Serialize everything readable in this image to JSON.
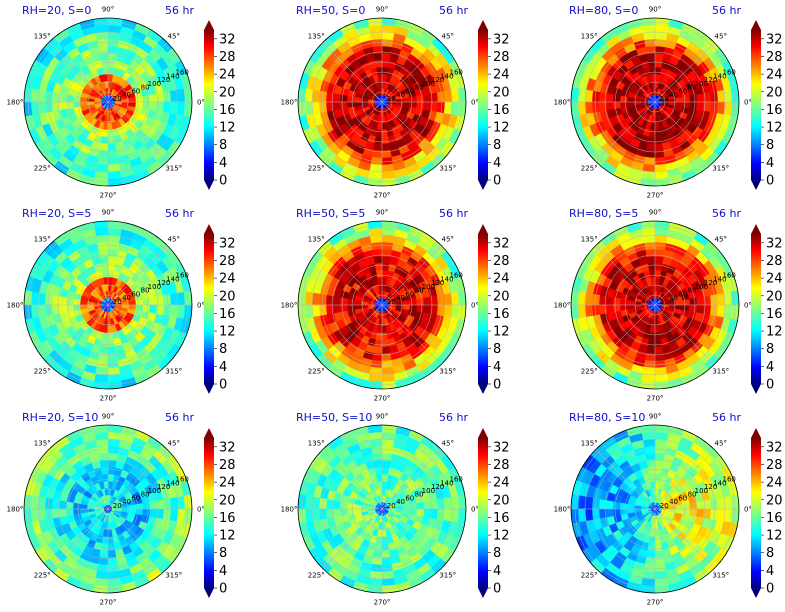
{
  "chart_data": [
    {
      "type": "heatmap",
      "projection": "polar",
      "title_left": "RH=20, S=0",
      "title_right": "56 hr",
      "pattern": "weak_inner",
      "intensity": 0.75,
      "angle_labels": [
        "90°",
        "45°",
        "0°",
        "315°",
        "270°",
        "225°",
        "180°",
        "135°"
      ],
      "radial_ticks": [
        "20",
        "40",
        "60",
        "80",
        "100",
        "120",
        "140",
        "160"
      ],
      "colorbar": {
        "min": 0,
        "max": 34,
        "ticks": [
          "0",
          "4",
          "8",
          "12",
          "16",
          "20",
          "24",
          "28",
          "32"
        ],
        "colormap": "jet",
        "extend": "both"
      }
    },
    {
      "type": "heatmap",
      "projection": "polar",
      "title_left": "RH=50, S=0",
      "title_right": "56 hr",
      "pattern": "ring",
      "intensity": 0.9,
      "angle_labels": [
        "90°",
        "45°",
        "0°",
        "315°",
        "270°",
        "225°",
        "180°",
        "135°"
      ],
      "radial_ticks": [
        "20",
        "40",
        "60",
        "80",
        "100",
        "120",
        "140",
        "160"
      ],
      "colorbar": {
        "min": 0,
        "max": 34,
        "ticks": [
          "0",
          "4",
          "8",
          "12",
          "16",
          "20",
          "24",
          "28",
          "32"
        ],
        "colormap": "jet",
        "extend": "both"
      }
    },
    {
      "type": "heatmap",
      "projection": "polar",
      "title_left": "RH=80, S=0",
      "title_right": "56 hr",
      "pattern": "ring",
      "intensity": 1.0,
      "angle_labels": [
        "90°",
        "45°",
        "0°",
        "315°",
        "270°",
        "225°",
        "180°",
        "135°"
      ],
      "radial_ticks": [
        "20",
        "40",
        "60",
        "80",
        "100",
        "120",
        "140",
        "160"
      ],
      "colorbar": {
        "min": 0,
        "max": 34,
        "ticks": [
          "0",
          "4",
          "8",
          "12",
          "16",
          "20",
          "24",
          "28",
          "32"
        ],
        "colormap": "jet",
        "extend": "both"
      }
    },
    {
      "type": "heatmap",
      "projection": "polar",
      "title_left": "RH=20, S=5",
      "title_right": "56 hr",
      "pattern": "weak_inner",
      "intensity": 0.7,
      "angle_labels": [
        "90°",
        "45°",
        "0°",
        "315°",
        "270°",
        "225°",
        "180°",
        "135°"
      ],
      "radial_ticks": [
        "20",
        "40",
        "60",
        "80",
        "100",
        "120",
        "140",
        "160"
      ],
      "colorbar": {
        "min": 0,
        "max": 34,
        "ticks": [
          "0",
          "4",
          "8",
          "12",
          "16",
          "20",
          "24",
          "28",
          "32"
        ],
        "colormap": "jet",
        "extend": "both"
      }
    },
    {
      "type": "heatmap",
      "projection": "polar",
      "title_left": "RH=50, S=5",
      "title_right": "56 hr",
      "pattern": "ring",
      "intensity": 0.8,
      "angle_labels": [
        "90°",
        "45°",
        "0°",
        "315°",
        "270°",
        "225°",
        "180°",
        "135°"
      ],
      "radial_ticks": [
        "20",
        "40",
        "60",
        "80",
        "100",
        "120",
        "140",
        "160"
      ],
      "colorbar": {
        "min": 0,
        "max": 34,
        "ticks": [
          "0",
          "4",
          "8",
          "12",
          "16",
          "20",
          "24",
          "28",
          "32"
        ],
        "colormap": "jet",
        "extend": "both"
      }
    },
    {
      "type": "heatmap",
      "projection": "polar",
      "title_left": "RH=80, S=5",
      "title_right": "56 hr",
      "pattern": "ring",
      "intensity": 0.9,
      "angle_labels": [
        "90°",
        "45°",
        "0°",
        "315°",
        "270°",
        "225°",
        "180°",
        "135°"
      ],
      "radial_ticks": [
        "20",
        "40",
        "60",
        "80",
        "100",
        "120",
        "140",
        "160"
      ],
      "colorbar": {
        "min": 0,
        "max": 34,
        "ticks": [
          "0",
          "4",
          "8",
          "12",
          "16",
          "20",
          "24",
          "28",
          "32"
        ],
        "colormap": "jet",
        "extend": "both"
      }
    },
    {
      "type": "heatmap",
      "projection": "polar",
      "title_left": "RH=20, S=10",
      "title_right": "56 hr",
      "pattern": "blue",
      "intensity": 0.4,
      "angle_labels": [
        "90°",
        "45°",
        "0°",
        "315°",
        "270°",
        "225°",
        "180°",
        "135°"
      ],
      "radial_ticks": [
        "20",
        "40",
        "60",
        "80",
        "100",
        "120",
        "140",
        "160"
      ],
      "colorbar": {
        "min": 0,
        "max": 34,
        "ticks": [
          "0",
          "4",
          "8",
          "12",
          "16",
          "20",
          "24",
          "28",
          "32"
        ],
        "colormap": "jet",
        "extend": "both"
      }
    },
    {
      "type": "heatmap",
      "projection": "polar",
      "title_left": "RH=50, S=10",
      "title_right": "56 hr",
      "pattern": "mixed",
      "intensity": 0.5,
      "angle_labels": [
        "90°",
        "45°",
        "0°",
        "315°",
        "270°",
        "225°",
        "180°",
        "135°"
      ],
      "radial_ticks": [
        "20",
        "40",
        "60",
        "80",
        "100",
        "120",
        "140",
        "160"
      ],
      "colorbar": {
        "min": 0,
        "max": 34,
        "ticks": [
          "0",
          "4",
          "8",
          "12",
          "16",
          "20",
          "24",
          "28",
          "32"
        ],
        "colormap": "jet",
        "extend": "both"
      }
    },
    {
      "type": "heatmap",
      "projection": "polar",
      "title_left": "RH=80, S=10",
      "title_right": "56 hr",
      "pattern": "asym",
      "intensity": 0.65,
      "angle_labels": [
        "90°",
        "45°",
        "0°",
        "315°",
        "270°",
        "225°",
        "180°",
        "135°"
      ],
      "radial_ticks": [
        "20",
        "40",
        "60",
        "80",
        "100",
        "120",
        "140",
        "160"
      ],
      "colorbar": {
        "min": 0,
        "max": 34,
        "ticks": [
          "0",
          "4",
          "8",
          "12",
          "16",
          "20",
          "24",
          "28",
          "32"
        ],
        "colormap": "jet",
        "extend": "both"
      }
    }
  ]
}
